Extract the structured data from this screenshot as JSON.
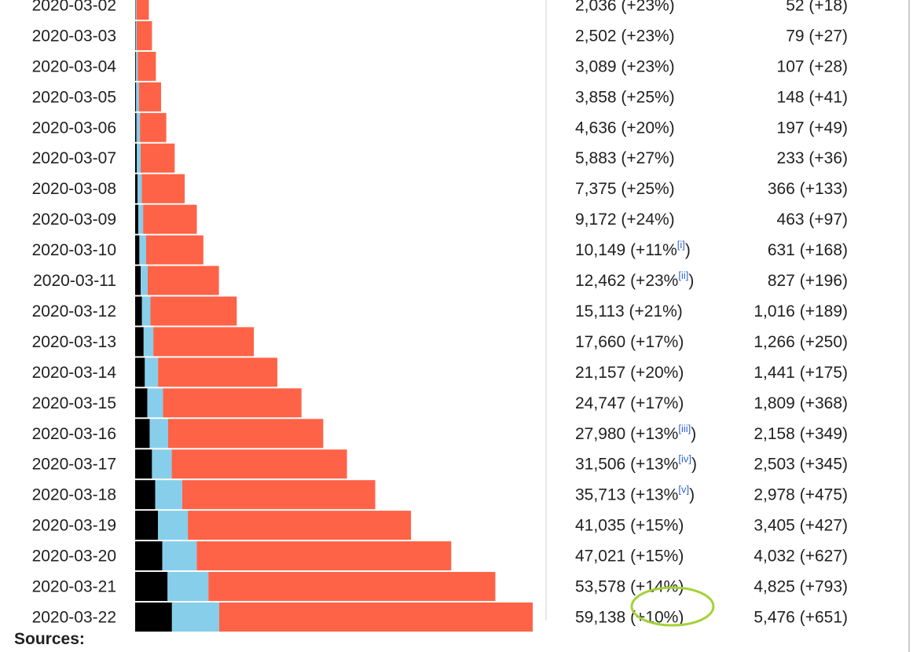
{
  "chart_data": {
    "type": "bar",
    "stacked": true,
    "orientation": "horizontal",
    "series_colors": {
      "deaths": "#000000",
      "recoveries": "#87ceeb",
      "active": "#ff6347"
    },
    "categories": [
      "2020-03-02",
      "2020-03-03",
      "2020-03-04",
      "2020-03-05",
      "2020-03-06",
      "2020-03-07",
      "2020-03-08",
      "2020-03-09",
      "2020-03-10",
      "2020-03-11",
      "2020-03-12",
      "2020-03-13",
      "2020-03-14",
      "2020-03-15",
      "2020-03-16",
      "2020-03-17",
      "2020-03-18",
      "2020-03-19",
      "2020-03-20",
      "2020-03-21",
      "2020-03-22"
    ],
    "deaths": [
      52,
      79,
      107,
      148,
      197,
      233,
      366,
      463,
      631,
      827,
      1016,
      1266,
      1441,
      1809,
      2158,
      2503,
      2978,
      3405,
      4032,
      4825,
      5476
    ],
    "recoveries": [
      149,
      160,
      276,
      414,
      523,
      589,
      622,
      724,
      1004,
      1045,
      1258,
      1439,
      1966,
      2335,
      2749,
      2941,
      4025,
      4440,
      5129,
      6072,
      7024
    ],
    "active": [
      1835,
      2263,
      2706,
      3296,
      3916,
      5061,
      6387,
      7985,
      8514,
      10590,
      12839,
      14955,
      17750,
      20603,
      23073,
      26062,
      28710,
      33190,
      37860,
      42681,
      46638
    ],
    "cases_text": [
      "2,036 (+23%)",
      "2,502 (+23%)",
      "3,089 (+23%)",
      "3,858 (+25%)",
      "4,636 (+20%)",
      "5,883 (+27%)",
      "7,375 (+25%)",
      "9,172 (+24%)",
      "10,149 (+11%",
      "12,462 (+23%",
      "15,113 (+21%)",
      "17,660 (+17%)",
      "21,157 (+20%)",
      "24,747 (+17%)",
      "27,980 (+13%",
      "31,506 (+13%",
      "35,713 (+13%",
      "41,035 (+15%)",
      "47,021 (+15%)",
      "53,578 (+14%)",
      "59,138 (+10%)"
    ],
    "cases_notes": [
      "",
      "",
      "",
      "",
      "",
      "",
      "",
      "",
      "[i]",
      "[ii]",
      "",
      "",
      "",
      "",
      "[iii]",
      "[iv]",
      "[v]",
      "",
      "",
      "",
      ""
    ],
    "deaths_text": [
      "52 (+18)",
      "79 (+27)",
      "107 (+28)",
      "148 (+41)",
      "197 (+49)",
      "233 (+36)",
      "366 (+133)",
      "463 (+97)",
      "631 (+168)",
      "827 (+196)",
      "1,016 (+189)",
      "1,266 (+250)",
      "1,441 (+175)",
      "1,809 (+368)",
      "2,158 (+349)",
      "2,503 (+345)",
      "2,978 (+475)",
      "3,405 (+427)",
      "4,032 (+627)",
      "4,825 (+793)",
      "5,476 (+651)"
    ],
    "highlight_color": "#a4d136"
  },
  "footer": {
    "sources_label": "Sources:"
  }
}
